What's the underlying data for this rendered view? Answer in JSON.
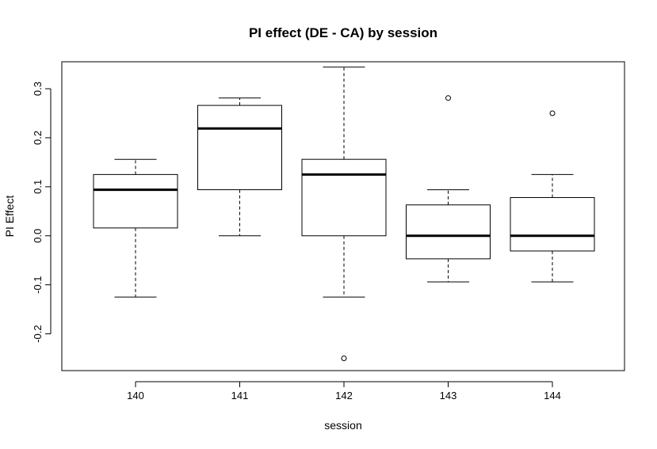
{
  "chart_data": {
    "type": "box",
    "title": "PI effect (DE - CA) by session",
    "xlabel": "session",
    "ylabel": "PI Effect",
    "ylim": [
      -0.275,
      0.355
    ],
    "yticks": [
      -0.2,
      -0.1,
      0.0,
      0.1,
      0.2,
      0.3
    ],
    "ytick_labels": [
      "-0.2",
      "-0.1",
      "0.0",
      "0.1",
      "0.2",
      "0.3"
    ],
    "grid": false,
    "legend": "none",
    "categories": [
      "140",
      "141",
      "142",
      "143",
      "144"
    ],
    "boxes": [
      {
        "category": "140",
        "whisker_low": -0.125,
        "q1": 0.016,
        "median": 0.094,
        "q3": 0.125,
        "whisker_high": 0.156,
        "outliers": []
      },
      {
        "category": "141",
        "whisker_low": 0.0,
        "q1": 0.094,
        "median": 0.219,
        "q3": 0.266,
        "whisker_high": 0.281,
        "outliers": []
      },
      {
        "category": "142",
        "whisker_low": -0.125,
        "q1": 0.0,
        "median": 0.125,
        "q3": 0.156,
        "whisker_high": 0.344,
        "outliers": [
          -0.25
        ]
      },
      {
        "category": "143",
        "whisker_low": -0.094,
        "q1": -0.047,
        "median": 0.0,
        "q3": 0.063,
        "whisker_high": 0.094,
        "outliers": [
          0.281
        ]
      },
      {
        "category": "144",
        "whisker_low": -0.094,
        "q1": -0.031,
        "median": 0.0,
        "q3": 0.078,
        "whisker_high": 0.125,
        "outliers": [
          0.25
        ]
      }
    ]
  }
}
